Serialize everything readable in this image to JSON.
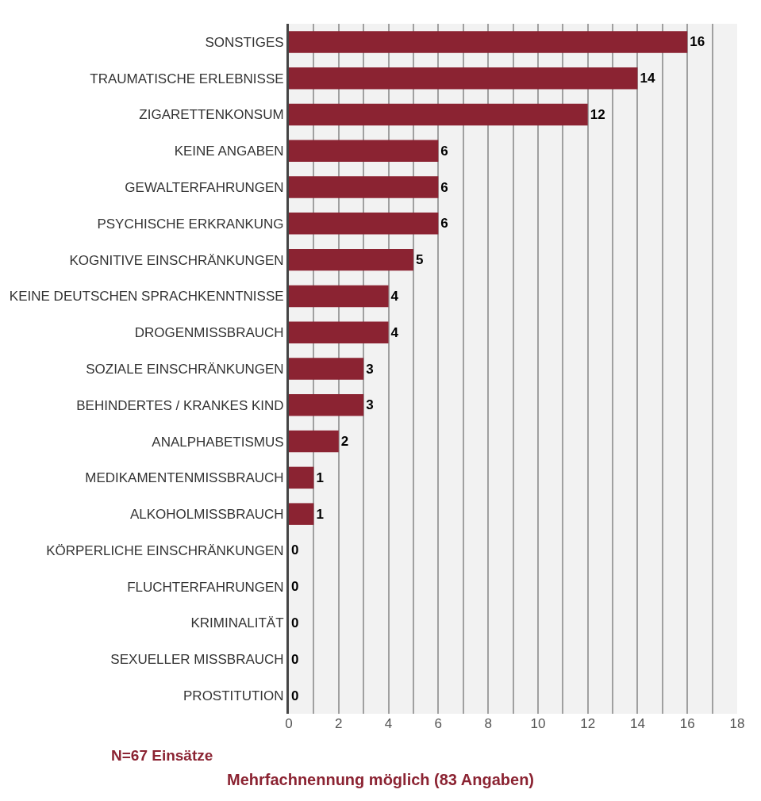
{
  "chart_data": {
    "type": "bar",
    "orientation": "horizontal",
    "title": "Mehrfachnennung möglich (83 Angaben)",
    "categories": [
      "SONSTIGES",
      "TRAUMATISCHE ERLEBNISSE",
      "ZIGARETTENKONSUM",
      "KEINE ANGABEN",
      "GEWALTERFAHRUNGEN",
      "PSYCHISCHE ERKRANKUNG",
      "KOGNITIVE EINSCHRÄNKUNGEN",
      "KEINE DEUTSCHEN SPRACHKENNTNISSE",
      "DROGENMISSBRAUCH",
      "SOZIALE EINSCHRÄNKUNGEN",
      "BEHINDERTES / KRANKES KIND",
      "ANALPHABETISMUS",
      "MEDIKAMENTENMISSBRAUCH",
      "ALKOHOLMISSBRAUCH",
      "KÖRPERLICHE EINSCHRÄNKUNGEN",
      "FLUCHTERFAHRUNGEN",
      "KRIMINALITÄT",
      "SEXUELLER MISSBRAUCH",
      "PROSTITUTION"
    ],
    "values": [
      16,
      14,
      12,
      6,
      6,
      6,
      5,
      4,
      4,
      3,
      3,
      2,
      1,
      1,
      0,
      0,
      0,
      0,
      0
    ],
    "color": "#8b2332",
    "data_labels": true,
    "grid": "x",
    "legend": false,
    "xlim": [
      0,
      18
    ],
    "xticks": [
      0,
      {
        "value": 1,
        "label": null
      },
      2,
      {
        "value": 3,
        "label": null
      },
      4,
      {
        "value": 5,
        "label": null
      },
      6,
      {
        "value": 7,
        "label": null
      },
      8,
      {
        "value": 9,
        "label": null
      },
      10,
      {
        "value": 11,
        "label": null
      },
      12,
      {
        "value": 13,
        "label": null
      },
      14,
      {
        "value": 15,
        "label": null
      },
      16,
      {
        "value": 17,
        "label": null
      },
      18
    ],
    "annotations": [
      "N=67 Einsätze"
    ]
  }
}
